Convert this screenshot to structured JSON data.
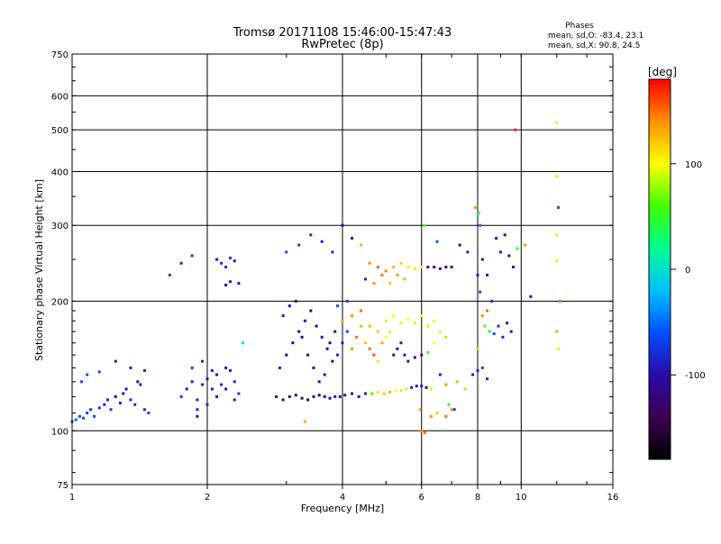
{
  "title": {
    "line1": "Tromsø 20171108 15:46:00-15:47:43",
    "line2": "RwPretec (8p)"
  },
  "stats": {
    "header": "Phases",
    "o_line": "mean, sd,O: -83.4, 23.1",
    "x_line": "mean, sd,X: 90.8, 24.5"
  },
  "colorbar": {
    "label": "[deg]",
    "ticks": [
      {
        "value": 100,
        "label": "100"
      },
      {
        "value": 0,
        "label": "0"
      },
      {
        "value": -100,
        "label": "-100"
      }
    ],
    "range": [
      -180,
      180
    ],
    "colors": [
      "#000000",
      "#3c0050",
      "#2a0aa8",
      "#0050ff",
      "#00c0ff",
      "#00ff90",
      "#40ff00",
      "#ffff00",
      "#ff9000",
      "#ff0000"
    ]
  },
  "chart_data": {
    "type": "scatter",
    "xlabel": "Frequency [MHz]",
    "ylabel": "Stationary phase Virtual Height [km]",
    "x_scale": "log",
    "y_scale": "log",
    "xlim": [
      1,
      16
    ],
    "ylim": [
      75,
      750
    ],
    "grid": true,
    "x_ticks": [
      {
        "value": 1,
        "label": "1"
      },
      {
        "value": 2,
        "label": "2"
      },
      {
        "value": 4,
        "label": "4"
      },
      {
        "value": 6,
        "label": "6"
      },
      {
        "value": 8,
        "label": "8"
      },
      {
        "value": 10,
        "label": "10"
      },
      {
        "value": 16,
        "label": "16"
      }
    ],
    "y_ticks": [
      {
        "value": 75,
        "label": "75"
      },
      {
        "value": 100,
        "label": "100"
      },
      {
        "value": 200,
        "label": "200"
      },
      {
        "value": 300,
        "label": "300"
      },
      {
        "value": 400,
        "label": "400"
      },
      {
        "value": 500,
        "label": "500"
      },
      {
        "value": 600,
        "label": "600"
      },
      {
        "value": 750,
        "label": "750"
      }
    ],
    "points": [
      [
        1.0,
        105,
        -60
      ],
      [
        1.02,
        106,
        -55
      ],
      [
        1.04,
        108,
        -65
      ],
      [
        1.06,
        107,
        -60
      ],
      [
        1.08,
        110,
        -70
      ],
      [
        1.1,
        112,
        -75
      ],
      [
        1.12,
        108,
        -60
      ],
      [
        1.15,
        113,
        -80
      ],
      [
        1.18,
        115,
        -85
      ],
      [
        1.2,
        118,
        -90
      ],
      [
        1.22,
        112,
        -75
      ],
      [
        1.25,
        120,
        -95
      ],
      [
        1.28,
        116,
        -85
      ],
      [
        1.3,
        122,
        -100
      ],
      [
        1.32,
        125,
        -95
      ],
      [
        1.35,
        118,
        -80
      ],
      [
        1.38,
        115,
        -85
      ],
      [
        1.4,
        130,
        -100
      ],
      [
        1.42,
        128,
        -90
      ],
      [
        1.45,
        112,
        -80
      ],
      [
        1.48,
        110,
        -70
      ],
      [
        1.05,
        130,
        -60
      ],
      [
        1.08,
        135,
        -65
      ],
      [
        1.15,
        137,
        -70
      ],
      [
        1.25,
        145,
        -90
      ],
      [
        1.35,
        140,
        -85
      ],
      [
        1.45,
        138,
        -80
      ],
      [
        1.75,
        120,
        -70
      ],
      [
        1.8,
        125,
        -85
      ],
      [
        1.85,
        130,
        -90
      ],
      [
        1.9,
        118,
        -80
      ],
      [
        1.95,
        128,
        -95
      ],
      [
        2.0,
        132,
        -100
      ],
      [
        2.05,
        125,
        -90
      ],
      [
        2.1,
        135,
        -95
      ],
      [
        2.15,
        128,
        -85
      ],
      [
        2.2,
        140,
        -100
      ],
      [
        2.25,
        138,
        -90
      ],
      [
        2.3,
        130,
        -80
      ],
      [
        2.35,
        122,
        -75
      ],
      [
        1.9,
        112,
        -80
      ],
      [
        2.0,
        115,
        -85
      ],
      [
        2.1,
        120,
        -90
      ],
      [
        2.2,
        125,
        -95
      ],
      [
        2.3,
        118,
        -85
      ],
      [
        1.85,
        140,
        -70
      ],
      [
        1.95,
        145,
        -80
      ],
      [
        2.05,
        138,
        -85
      ],
      [
        1.65,
        230,
        -70
      ],
      [
        1.75,
        245,
        -80
      ],
      [
        1.85,
        255,
        -75
      ],
      [
        2.1,
        250,
        -90
      ],
      [
        2.15,
        245,
        -85
      ],
      [
        2.2,
        240,
        -80
      ],
      [
        2.25,
        252,
        -75
      ],
      [
        2.3,
        248,
        -90
      ],
      [
        2.35,
        220,
        -95
      ],
      [
        2.2,
        218,
        -100
      ],
      [
        2.25,
        222,
        -90
      ],
      [
        1.9,
        108,
        -110
      ],
      [
        2.4,
        160,
        20
      ],
      [
        2.85,
        120,
        -120
      ],
      [
        2.95,
        118,
        -125
      ],
      [
        3.05,
        120,
        -120
      ],
      [
        3.15,
        121,
        -115
      ],
      [
        3.25,
        119,
        -120
      ],
      [
        3.35,
        118,
        -125
      ],
      [
        3.45,
        120,
        -120
      ],
      [
        3.55,
        121,
        -115
      ],
      [
        3.65,
        120,
        -110
      ],
      [
        3.75,
        119,
        -100
      ],
      [
        3.85,
        120,
        -90
      ],
      [
        3.95,
        120,
        -100
      ],
      [
        4.05,
        121,
        -110
      ],
      [
        4.2,
        122,
        -115
      ],
      [
        4.35,
        120,
        -110
      ],
      [
        4.5,
        122,
        -90
      ],
      [
        4.65,
        122,
        60
      ],
      [
        4.8,
        123,
        110
      ],
      [
        4.95,
        122,
        120
      ],
      [
        5.1,
        123,
        130
      ],
      [
        5.25,
        124,
        100
      ],
      [
        5.4,
        124,
        110
      ],
      [
        5.55,
        125,
        90
      ],
      [
        5.7,
        126,
        -90
      ],
      [
        5.85,
        127,
        -100
      ],
      [
        6.0,
        127,
        -95
      ],
      [
        6.15,
        126,
        -110
      ],
      [
        6.3,
        125,
        90
      ],
      [
        2.9,
        140,
        -100
      ],
      [
        3.0,
        150,
        -110
      ],
      [
        3.1,
        160,
        -120
      ],
      [
        3.2,
        170,
        -110
      ],
      [
        3.3,
        180,
        -100
      ],
      [
        3.4,
        190,
        -120
      ],
      [
        3.5,
        175,
        -110
      ],
      [
        3.6,
        165,
        -100
      ],
      [
        3.7,
        155,
        -105
      ],
      [
        3.8,
        145,
        -115
      ],
      [
        2.95,
        185,
        -90
      ],
      [
        3.05,
        195,
        -100
      ],
      [
        3.15,
        200,
        -110
      ],
      [
        3.25,
        165,
        -120
      ],
      [
        3.35,
        150,
        -115
      ],
      [
        3.45,
        140,
        -110
      ],
      [
        3.55,
        130,
        -105
      ],
      [
        3.65,
        135,
        -100
      ],
      [
        3.75,
        160,
        -110
      ],
      [
        3.85,
        170,
        -120
      ],
      [
        3.9,
        150,
        -80
      ],
      [
        4.0,
        160,
        -90
      ],
      [
        4.1,
        170,
        -60
      ],
      [
        4.2,
        155,
        140
      ],
      [
        4.3,
        165,
        150
      ],
      [
        4.4,
        175,
        130
      ],
      [
        4.5,
        160,
        120
      ],
      [
        4.6,
        155,
        150
      ],
      [
        4.7,
        150,
        160
      ],
      [
        4.8,
        145,
        110
      ],
      [
        4.9,
        160,
        130
      ],
      [
        5.0,
        165,
        100
      ],
      [
        5.1,
        170,
        90
      ],
      [
        5.2,
        150,
        -100
      ],
      [
        5.3,
        155,
        -110
      ],
      [
        5.4,
        160,
        -90
      ],
      [
        5.5,
        150,
        -100
      ],
      [
        5.6,
        145,
        -95
      ],
      [
        5.8,
        148,
        -100
      ],
      [
        6.0,
        150,
        -105
      ],
      [
        6.2,
        152,
        60
      ],
      [
        6.4,
        160,
        100
      ],
      [
        6.6,
        170,
        90
      ],
      [
        6.8,
        165,
        80
      ],
      [
        4.0,
        180,
        130
      ],
      [
        4.2,
        185,
        140
      ],
      [
        4.4,
        190,
        150
      ],
      [
        4.6,
        175,
        130
      ],
      [
        4.8,
        170,
        120
      ],
      [
        5.0,
        180,
        110
      ],
      [
        5.2,
        185,
        100
      ],
      [
        5.4,
        178,
        90
      ],
      [
        5.6,
        182,
        100
      ],
      [
        5.8,
        178,
        110
      ],
      [
        6.0,
        185,
        100
      ],
      [
        6.2,
        175,
        90
      ],
      [
        6.4,
        180,
        95
      ],
      [
        3.9,
        195,
        -60
      ],
      [
        4.1,
        200,
        -70
      ],
      [
        3.0,
        260,
        -60
      ],
      [
        3.2,
        270,
        -70
      ],
      [
        3.4,
        285,
        -80
      ],
      [
        3.6,
        275,
        -90
      ],
      [
        3.8,
        260,
        -85
      ],
      [
        4.0,
        300,
        -100
      ],
      [
        4.2,
        280,
        -110
      ],
      [
        4.4,
        270,
        130
      ],
      [
        4.6,
        245,
        140
      ],
      [
        4.8,
        240,
        150
      ],
      [
        5.0,
        235,
        140
      ],
      [
        5.2,
        240,
        130
      ],
      [
        5.4,
        245,
        120
      ],
      [
        5.6,
        240,
        110
      ],
      [
        5.8,
        238,
        90
      ],
      [
        6.0,
        240,
        100
      ],
      [
        6.2,
        240,
        -100
      ],
      [
        6.4,
        240,
        -110
      ],
      [
        6.6,
        238,
        -105
      ],
      [
        6.8,
        240,
        -110
      ],
      [
        7.0,
        240,
        -115
      ],
      [
        4.5,
        225,
        -80
      ],
      [
        4.7,
        220,
        140
      ],
      [
        4.9,
        230,
        150
      ],
      [
        5.1,
        220,
        120
      ],
      [
        5.3,
        230,
        140
      ],
      [
        5.5,
        225,
        130
      ],
      [
        6.1,
        300,
        60
      ],
      [
        6.5,
        275,
        -60
      ],
      [
        7.3,
        270,
        -100
      ],
      [
        7.6,
        260,
        -90
      ],
      [
        7.9,
        330,
        140
      ],
      [
        8.05,
        320,
        40
      ],
      [
        8.1,
        300,
        -50
      ],
      [
        8.2,
        250,
        -100
      ],
      [
        8.4,
        230,
        -90
      ],
      [
        8.6,
        200,
        -80
      ],
      [
        8.8,
        280,
        -100
      ],
      [
        9.0,
        260,
        -90
      ],
      [
        9.2,
        285,
        -110
      ],
      [
        9.4,
        255,
        -100
      ],
      [
        9.6,
        240,
        -95
      ],
      [
        9.8,
        265,
        40
      ],
      [
        10.2,
        270,
        140
      ],
      [
        10.5,
        205,
        -100
      ],
      [
        8.0,
        230,
        -90
      ],
      [
        8.1,
        210,
        -60
      ],
      [
        8.3,
        175,
        60
      ],
      [
        8.5,
        170,
        30
      ],
      [
        8.7,
        168,
        -60
      ],
      [
        8.9,
        175,
        -70
      ],
      [
        9.1,
        165,
        -80
      ],
      [
        9.3,
        178,
        -90
      ],
      [
        9.5,
        170,
        -100
      ],
      [
        8.2,
        185,
        140
      ],
      [
        8.4,
        190,
        150
      ],
      [
        8.0,
        155,
        120
      ],
      [
        7.8,
        135,
        -90
      ],
      [
        8.0,
        138,
        -80
      ],
      [
        8.2,
        140,
        -70
      ],
      [
        8.4,
        132,
        -80
      ],
      [
        7.5,
        125,
        120
      ],
      [
        7.2,
        130,
        130
      ],
      [
        6.8,
        128,
        140
      ],
      [
        6.6,
        135,
        -90
      ],
      [
        6.9,
        115,
        60
      ],
      [
        7.1,
        112,
        -70
      ],
      [
        6.5,
        110,
        120
      ],
      [
        6.8,
        108,
        150
      ],
      [
        7.0,
        112,
        140
      ],
      [
        9.7,
        500,
        170
      ],
      [
        12.0,
        520,
        110
      ],
      [
        12.0,
        390,
        110
      ],
      [
        12.1,
        330,
        -60
      ],
      [
        12.0,
        285,
        90
      ],
      [
        12.0,
        248,
        110
      ],
      [
        12.2,
        200,
        150
      ],
      [
        12.0,
        170,
        130
      ],
      [
        12.1,
        155,
        90
      ],
      [
        3.3,
        105,
        130
      ],
      [
        6.0,
        100,
        140
      ],
      [
        6.1,
        99,
        150
      ],
      [
        6.3,
        108,
        140
      ],
      [
        5.95,
        112,
        130
      ]
    ]
  }
}
